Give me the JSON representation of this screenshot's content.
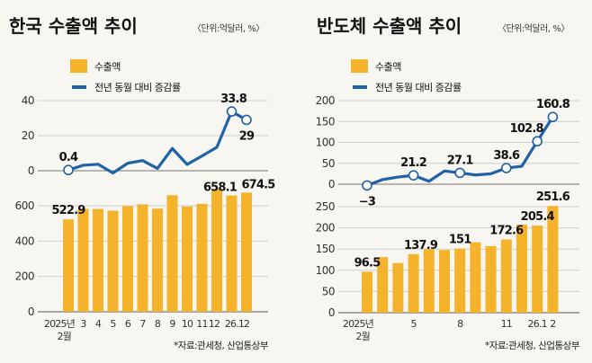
{
  "colors": {
    "bar": "#f5b32c",
    "line": "#1f62a6",
    "grid": "#cfcfcf",
    "background": "#f7f6f1"
  },
  "chart_data": [
    {
      "type": "bar+line",
      "title": "한국 수출액 추이",
      "unit": "〈단위:억달러, %〉",
      "legend": {
        "bar": "수출액",
        "line": "전년 동월 대비 증감률"
      },
      "categories": [
        "2025년 2월",
        "3",
        "4",
        "5",
        "6",
        "7",
        "8",
        "9",
        "10",
        "11",
        "12",
        "26.1",
        "2"
      ],
      "bar_series": {
        "name": "수출액",
        "values": [
          522.9,
          582,
          582,
          572,
          598,
          608,
          584,
          659.5,
          595.7,
          610.4,
          695.7,
          658.1,
          674.5
        ],
        "yticks": [
          0,
          200,
          400,
          600
        ],
        "ylim": [
          0,
          700
        ],
        "labels": {
          "0": "522.9",
          "11": "658.1",
          "12": "674.5"
        }
      },
      "line_series": {
        "name": "전년 동월 대비 증감률",
        "values": [
          0.4,
          3.1,
          3.7,
          -1.3,
          4.3,
          5.8,
          1.3,
          12.7,
          3.6,
          8.4,
          13.4,
          33.8,
          29
        ],
        "yticks": [
          0,
          20,
          40
        ],
        "ylim": [
          -5,
          40
        ],
        "labels": {
          "0": "0.4",
          "11": "33.8",
          "12": "29"
        },
        "markers": [
          0,
          11,
          12
        ]
      },
      "grid": true,
      "source": "*자료:관세청, 산업통상부"
    },
    {
      "type": "bar+line",
      "title": "반도체 수출액 추이",
      "unit": "〈단위:억달러, %〉",
      "legend": {
        "bar": "수출액",
        "line": "전년 동월 대비 증감률"
      },
      "categories": [
        "2025년 2월",
        "",
        "",
        "5",
        "",
        "",
        "8",
        "",
        "",
        "11",
        "",
        "26.1",
        "2"
      ],
      "bar_series": {
        "name": "수출액",
        "values": [
          96.5,
          131,
          117,
          137.9,
          150,
          148,
          151,
          166,
          157,
          172.6,
          207.7,
          205.4,
          251.6
        ],
        "yticks": [
          0,
          50,
          100,
          150,
          200,
          250
        ],
        "ylim": [
          0,
          250
        ],
        "labels": {
          "0": "96.5",
          "3": "137.9",
          "6": "151",
          "9": "172.6",
          "11": "205.4",
          "12": "251.6"
        }
      },
      "line_series": {
        "name": "전년 동월 대비 증감률",
        "values": [
          -3,
          11,
          17,
          21.2,
          7,
          31.6,
          27.1,
          22,
          25,
          38.6,
          43,
          102.8,
          160.8
        ],
        "yticks": [
          0,
          50,
          100,
          150,
          200
        ],
        "ylim": [
          -10,
          200
        ],
        "labels": {
          "0": "−3",
          "3": "21.2",
          "6": "27.1",
          "9": "38.6",
          "11": "102.8",
          "12": "160.8"
        },
        "markers": [
          0,
          3,
          6,
          9,
          11,
          12
        ]
      },
      "grid": true,
      "source": "*자료:관세청, 산업통상부"
    }
  ]
}
